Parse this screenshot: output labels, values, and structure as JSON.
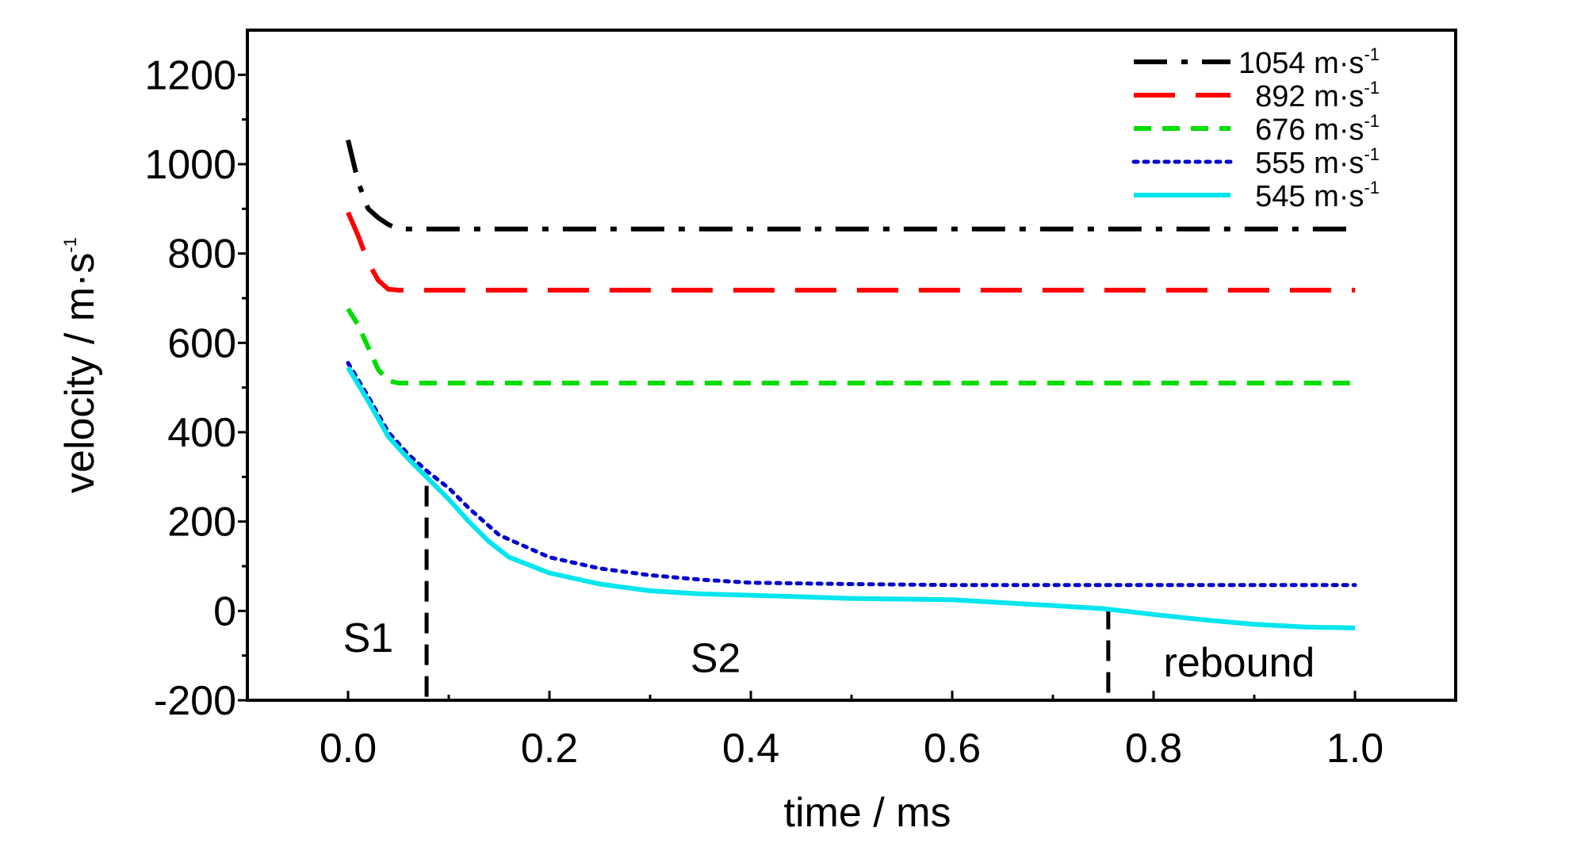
{
  "chart_data": {
    "type": "line",
    "xlabel": "time / ms",
    "ylabel": "velocity / m·s",
    "ylabel_sup": "-1",
    "xlim": [
      -0.1,
      1.1
    ],
    "ylim": [
      -200,
      1300
    ],
    "xticks": [
      0.0,
      0.2,
      0.4,
      0.6,
      0.8,
      1.0
    ],
    "xtick_labels": [
      "0.0",
      "0.2",
      "0.4",
      "0.6",
      "0.8",
      "1.0"
    ],
    "yticks": [
      -200,
      0,
      200,
      400,
      600,
      800,
      1000,
      1200
    ],
    "ytick_labels": [
      "-200",
      "0",
      "200",
      "400",
      "600",
      "800",
      "1000",
      "1200"
    ],
    "legend_position": "top-right",
    "grid": false,
    "series": [
      {
        "name": "1054 m·s",
        "name_sup": "-1",
        "color": "#000000",
        "style": "dash-dot",
        "x": [
          0.0,
          0.01,
          0.02,
          0.03,
          0.04,
          0.05,
          0.1,
          0.2,
          0.4,
          0.6,
          0.8,
          1.0
        ],
        "y": [
          1054,
          960,
          900,
          880,
          865,
          855,
          855,
          855,
          855,
          855,
          855,
          855
        ]
      },
      {
        "name": "892 m·s",
        "name_sup": "-1",
        "color": "#ff0000",
        "style": "dash",
        "x": [
          0.0,
          0.01,
          0.02,
          0.03,
          0.04,
          0.05,
          0.1,
          0.2,
          0.4,
          0.6,
          0.8,
          1.0
        ],
        "y": [
          892,
          840,
          780,
          740,
          720,
          718,
          718,
          718,
          718,
          718,
          718,
          718
        ]
      },
      {
        "name": "676 m·s",
        "name_sup": "-1",
        "color": "#00dd00",
        "style": "short-dash",
        "x": [
          0.0,
          0.01,
          0.02,
          0.03,
          0.04,
          0.05,
          0.1,
          0.2,
          0.4,
          0.6,
          0.8,
          1.0
        ],
        "y": [
          676,
          640,
          590,
          540,
          515,
          510,
          510,
          510,
          510,
          510,
          510,
          510
        ]
      },
      {
        "name": "555 m·s",
        "name_sup": "-1",
        "color": "#0000cc",
        "style": "dot",
        "x": [
          0.0,
          0.02,
          0.04,
          0.06,
          0.08,
          0.1,
          0.12,
          0.15,
          0.2,
          0.25,
          0.3,
          0.35,
          0.4,
          0.5,
          0.6,
          0.7,
          0.8,
          0.9,
          1.0
        ],
        "y": [
          555,
          480,
          400,
          350,
          310,
          275,
          230,
          170,
          120,
          95,
          80,
          70,
          63,
          60,
          58,
          58,
          58,
          58,
          58
        ]
      },
      {
        "name": "545 m·s",
        "name_sup": "-1",
        "color": "#00e5ee",
        "style": "solid",
        "x": [
          0.0,
          0.02,
          0.04,
          0.06,
          0.08,
          0.1,
          0.12,
          0.14,
          0.16,
          0.2,
          0.25,
          0.3,
          0.35,
          0.4,
          0.5,
          0.6,
          0.7,
          0.75,
          0.8,
          0.85,
          0.9,
          0.95,
          1.0
        ],
        "y": [
          545,
          470,
          390,
          340,
          295,
          250,
          200,
          155,
          120,
          85,
          60,
          45,
          38,
          35,
          28,
          25,
          12,
          5,
          -8,
          -20,
          -30,
          -36,
          -38
        ]
      }
    ],
    "annotations": [
      {
        "text": "S1",
        "x": 0.02,
        "y": -60
      },
      {
        "text": "S2",
        "x": 0.365,
        "y": -105
      },
      {
        "text": "rebound",
        "x": 0.885,
        "y": -115
      }
    ],
    "vlines": [
      {
        "x": 0.078,
        "y_top": 280
      },
      {
        "x": 0.755,
        "y_top": 5
      }
    ]
  }
}
